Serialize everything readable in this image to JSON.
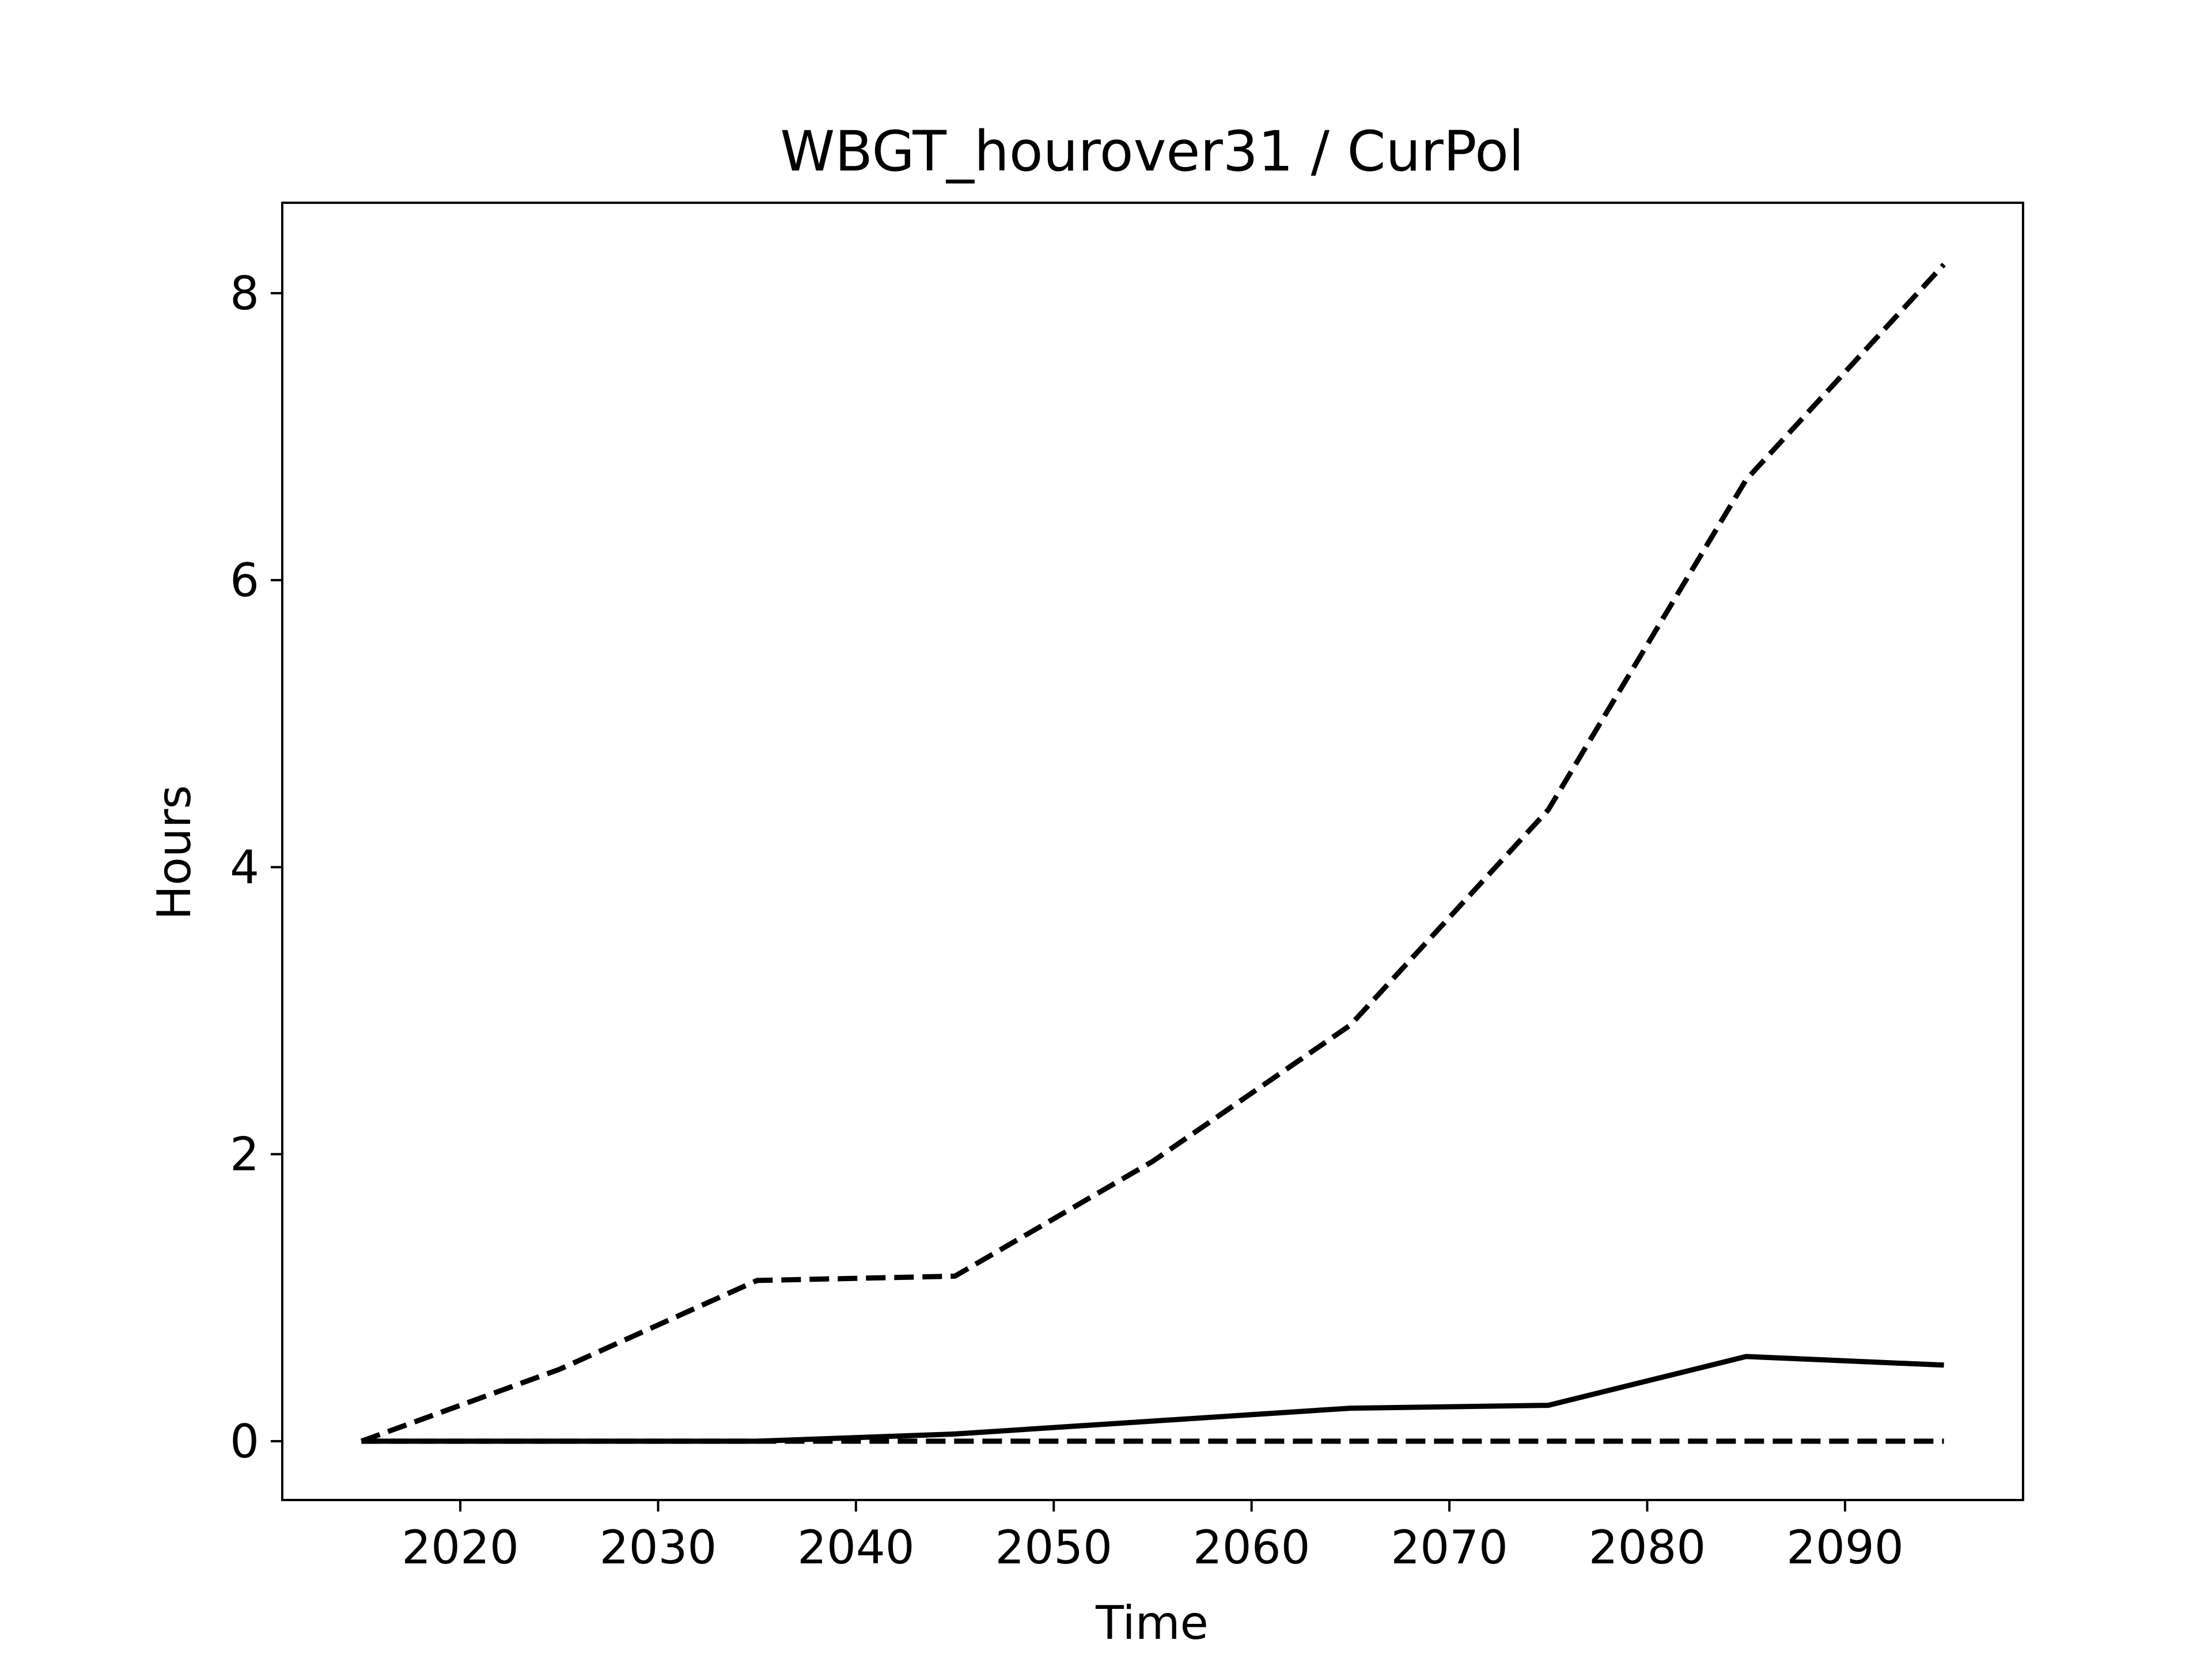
{
  "chart_data": {
    "type": "line",
    "title": "WBGT_hourover31 / CurPol",
    "xlabel": "Time",
    "ylabel": "Hours",
    "xlim": [
      2011,
      2099
    ],
    "ylim": [
      -0.41,
      8.63
    ],
    "xticks": [
      2020,
      2030,
      2040,
      2050,
      2060,
      2070,
      2080,
      2090
    ],
    "yticks": [
      0,
      2,
      4,
      6,
      8
    ],
    "grid": false,
    "legend": "none",
    "x": [
      2015,
      2025,
      2035,
      2045,
      2055,
      2065,
      2075,
      2085,
      2095
    ],
    "series": [
      {
        "style": "dashed",
        "color": "#000000",
        "values": [
          0.0,
          0.5,
          1.12,
          1.15,
          1.95,
          2.9,
          4.4,
          6.7,
          8.2
        ]
      },
      {
        "style": "solid",
        "color": "#000000",
        "values": [
          0.0,
          0.0,
          0.0,
          0.05,
          0.14,
          0.23,
          0.25,
          0.59,
          0.53
        ]
      },
      {
        "style": "dashed",
        "color": "#000000",
        "values": [
          0.0,
          0.0,
          0.0,
          0.0,
          0.0,
          0.0,
          0.0,
          0.0,
          0.0
        ]
      }
    ]
  }
}
